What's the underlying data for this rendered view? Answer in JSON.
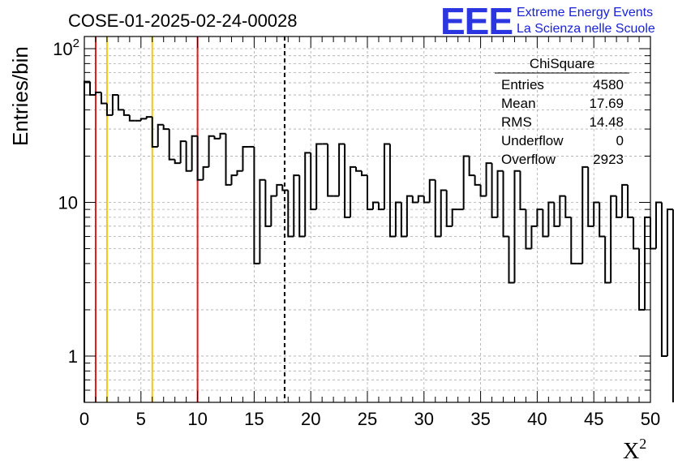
{
  "title": "COSE-01-2025-02-24-00028",
  "logo": {
    "mark": "EEE",
    "line1": "Extreme Energy Events",
    "line2": "La Scienza nelle Scuole",
    "color": "#2b35e0"
  },
  "chart_data": {
    "type": "histogram",
    "title": "COSE-01-2025-02-24-00028",
    "xlabel": "X",
    "xlabel_superscript": "2",
    "ylabel": "Entries/bin",
    "xlim": [
      0,
      50
    ],
    "ylim": [
      0.5,
      120
    ],
    "yscale": "log",
    "bin_width": 0.5,
    "x_ticks": [
      "0",
      "5",
      "10",
      "15",
      "20",
      "25",
      "30",
      "35",
      "40",
      "45",
      "50"
    ],
    "y_ticks": [
      "1",
      "10",
      "10^2"
    ],
    "grid": true,
    "values": [
      61,
      50,
      52,
      44,
      37,
      50,
      40,
      37,
      34,
      34,
      35,
      36,
      23,
      32,
      30,
      19,
      18,
      25,
      16,
      27,
      14,
      17,
      27,
      26,
      28,
      13,
      15,
      16,
      23,
      23,
      4,
      14,
      7,
      11,
      13,
      12,
      6,
      15,
      6,
      21,
      9,
      24,
      24,
      11,
      11,
      24,
      8,
      17,
      16,
      15,
      9,
      10,
      9,
      24,
      6,
      10,
      6,
      11,
      10,
      11,
      10,
      14,
      6,
      12,
      7,
      9,
      9,
      20,
      15,
      13,
      11,
      18,
      8,
      16,
      6,
      3,
      16,
      9,
      5,
      7,
      9,
      6,
      10,
      7,
      11,
      8,
      4,
      4,
      17,
      7,
      10,
      6,
      3,
      11,
      8,
      13,
      8,
      5,
      2,
      8,
      5,
      10,
      1,
      9
    ],
    "lines": [
      {
        "x": 1,
        "color": "#e41a1c",
        "style": "solid"
      },
      {
        "x": 2,
        "color": "#f5c518",
        "style": "solid"
      },
      {
        "x": 6,
        "color": "#f5c518",
        "style": "solid"
      },
      {
        "x": 10,
        "color": "#e41a1c",
        "style": "solid"
      },
      {
        "x": 17.69,
        "color": "#000000",
        "style": "dashed"
      }
    ],
    "stats": {
      "name": "ChiSquare",
      "rows": [
        {
          "label": "Entries",
          "value": "4580"
        },
        {
          "label": "Mean",
          "value": "17.69"
        },
        {
          "label": "RMS",
          "value": "14.48"
        },
        {
          "label": "Underflow",
          "value": "0"
        },
        {
          "label": "Overflow",
          "value": "2923"
        }
      ]
    },
    "line_color": "#000000"
  }
}
